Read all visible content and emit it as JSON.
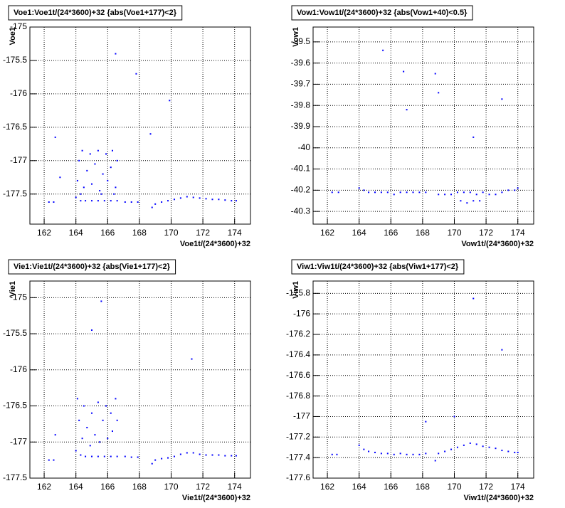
{
  "chart_data": [
    {
      "type": "scatter",
      "title": "Voe1:Voe1t/(24*3600)+32 {abs(Voe1+177)<2}",
      "x_label": "Voe1t/(24*3600)+32",
      "y_label": "Voe1",
      "color": "#0000ff",
      "grid": true,
      "xlim": [
        161.1,
        175
      ],
      "ylim": [
        -177.95,
        -175
      ],
      "xticks": [
        162,
        164,
        166,
        168,
        170,
        172,
        174
      ],
      "yticks": [
        -175,
        -175.5,
        -176,
        -176.5,
        -177,
        -177.5
      ],
      "x": [
        162.3,
        162.6,
        164.0,
        164.3,
        164.6,
        165.0,
        165.4,
        165.8,
        166.2,
        166.6,
        167.1,
        167.5,
        167.9,
        168.8,
        169.0,
        169.4,
        169.8,
        170.2,
        170.6,
        171.0,
        171.4,
        171.8,
        172.2,
        172.6,
        173.0,
        173.4,
        173.8,
        174.1,
        164.1,
        164.2,
        164.4,
        164.5,
        164.7,
        164.9,
        165.0,
        165.2,
        165.4,
        165.5,
        165.7,
        165.9,
        166.0,
        166.2,
        166.3,
        166.5,
        166.6,
        164.3,
        165.6,
        166.4,
        162.7,
        163.0,
        166.5,
        167.8,
        168.7,
        169.9
      ],
      "y": [
        -177.62,
        -177.62,
        -177.55,
        -177.6,
        -177.6,
        -177.6,
        -177.6,
        -177.6,
        -177.6,
        -177.6,
        -177.62,
        -177.62,
        -177.62,
        -177.7,
        -177.65,
        -177.62,
        -177.6,
        -177.58,
        -177.56,
        -177.54,
        -177.55,
        -177.56,
        -177.57,
        -177.58,
        -177.58,
        -177.59,
        -177.6,
        -177.6,
        -177.3,
        -177.0,
        -176.85,
        -177.4,
        -177.15,
        -176.9,
        -177.35,
        -177.05,
        -176.85,
        -177.45,
        -177.2,
        -176.9,
        -177.3,
        -177.1,
        -176.85,
        -177.4,
        -177.0,
        -177.5,
        -177.5,
        -177.5,
        -176.65,
        -177.25,
        -175.4,
        -175.7,
        -176.6,
        -176.1
      ]
    },
    {
      "type": "scatter",
      "title": "Vow1:Vow1t/(24*3600)+32 {abs(Vow1+40)<0.5}",
      "x_label": "Vow1t/(24*3600)+32",
      "y_label": "Vow1",
      "color": "#0000ff",
      "grid": true,
      "xlim": [
        161.1,
        175
      ],
      "ylim": [
        -40.36,
        -39.43
      ],
      "xticks": [
        162,
        164,
        166,
        168,
        170,
        172,
        174
      ],
      "yticks": [
        -39.5,
        -39.6,
        -39.7,
        -39.8,
        -39.9,
        -40,
        -40.1,
        -40.2,
        -40.3
      ],
      "x": [
        162.3,
        162.7,
        164.0,
        164.3,
        164.6,
        165.0,
        165.4,
        165.8,
        166.2,
        166.6,
        167.0,
        167.4,
        167.8,
        168.2,
        169.0,
        169.4,
        169.8,
        170.2,
        170.6,
        171.0,
        171.4,
        171.8,
        172.2,
        172.6,
        173.0,
        173.4,
        173.8,
        174.0,
        170.4,
        170.8,
        171.2,
        171.6,
        165.5,
        166.8,
        169.0,
        168.8,
        171.2,
        173.0,
        167.0
      ],
      "y": [
        -40.21,
        -40.21,
        -40.19,
        -40.2,
        -40.21,
        -40.21,
        -40.21,
        -40.21,
        -40.22,
        -40.21,
        -40.21,
        -40.21,
        -40.21,
        -40.21,
        -40.22,
        -40.22,
        -40.22,
        -40.21,
        -40.21,
        -40.21,
        -40.22,
        -40.21,
        -40.22,
        -40.22,
        -40.21,
        -40.2,
        -40.2,
        -40.19,
        -40.25,
        -40.26,
        -40.25,
        -40.25,
        -39.54,
        -39.64,
        -39.74,
        -39.65,
        -39.95,
        -39.77,
        -39.82
      ]
    },
    {
      "type": "scatter",
      "title": "Vie1:Vie1t/(24*3600)+32 {abs(Vie1+177)<2}",
      "x_label": "Vie1t/(24*3600)+32",
      "y_label": "Vie1",
      "color": "#0000ff",
      "grid": true,
      "xlim": [
        161.1,
        175
      ],
      "ylim": [
        -177.5,
        -174.77
      ],
      "xticks": [
        162,
        164,
        166,
        168,
        170,
        172,
        174
      ],
      "yticks": [
        -175,
        -175.5,
        -176,
        -176.5,
        -177,
        -177.5
      ],
      "x": [
        162.3,
        162.6,
        164.0,
        164.3,
        164.6,
        165.0,
        165.4,
        165.8,
        166.2,
        166.6,
        167.1,
        167.5,
        167.9,
        168.8,
        169.0,
        169.4,
        169.8,
        170.2,
        170.6,
        171.0,
        171.4,
        171.8,
        172.2,
        172.6,
        173.0,
        173.4,
        173.8,
        174.1,
        164.1,
        164.2,
        164.4,
        164.5,
        164.7,
        164.9,
        165.0,
        165.2,
        165.4,
        165.5,
        165.7,
        165.9,
        166.0,
        166.2,
        166.3,
        166.5,
        166.6,
        165.6,
        165.0,
        171.3,
        162.7
      ],
      "y": [
        -177.25,
        -177.25,
        -177.12,
        -177.18,
        -177.2,
        -177.2,
        -177.2,
        -177.2,
        -177.2,
        -177.2,
        -177.2,
        -177.21,
        -177.21,
        -177.3,
        -177.25,
        -177.23,
        -177.22,
        -177.2,
        -177.17,
        -177.15,
        -177.15,
        -177.17,
        -177.18,
        -177.18,
        -177.18,
        -177.19,
        -177.19,
        -177.19,
        -176.4,
        -176.7,
        -176.95,
        -176.5,
        -176.8,
        -177.05,
        -176.6,
        -176.9,
        -176.45,
        -177.0,
        -176.7,
        -176.5,
        -176.95,
        -176.6,
        -176.85,
        -176.4,
        -176.7,
        -175.05,
        -175.45,
        -175.85,
        -176.9
      ]
    },
    {
      "type": "scatter",
      "title": "Viw1:Viw1t/(24*3600)+32 {abs(Viw1+177)<2}",
      "x_label": "Viw1t/(24*3600)+32",
      "y_label": "Viw1",
      "color": "#0000ff",
      "grid": true,
      "xlim": [
        161.1,
        175
      ],
      "ylim": [
        -177.6,
        -175.68
      ],
      "xticks": [
        162,
        164,
        166,
        168,
        170,
        172,
        174
      ],
      "yticks": [
        -175.8,
        -176,
        -176.2,
        -176.4,
        -176.6,
        -176.8,
        -177,
        -177.2,
        -177.4,
        -177.6
      ],
      "x": [
        162.3,
        162.6,
        164.0,
        164.3,
        164.6,
        165.0,
        165.4,
        165.8,
        166.2,
        166.6,
        167.0,
        167.4,
        167.8,
        168.2,
        168.8,
        169.0,
        169.4,
        169.8,
        170.2,
        170.6,
        171.0,
        171.4,
        171.8,
        172.2,
        172.6,
        173.0,
        173.4,
        173.8,
        174.0,
        171.2,
        173.0,
        170.0,
        168.2
      ],
      "y": [
        -177.37,
        -177.37,
        -177.28,
        -177.32,
        -177.34,
        -177.35,
        -177.36,
        -177.36,
        -177.37,
        -177.36,
        -177.37,
        -177.37,
        -177.37,
        -177.36,
        -177.43,
        -177.36,
        -177.34,
        -177.32,
        -177.3,
        -177.28,
        -177.26,
        -177.27,
        -177.29,
        -177.3,
        -177.31,
        -177.33,
        -177.34,
        -177.35,
        -177.35,
        -175.85,
        -176.35,
        -177.0,
        -177.05
      ]
    }
  ]
}
